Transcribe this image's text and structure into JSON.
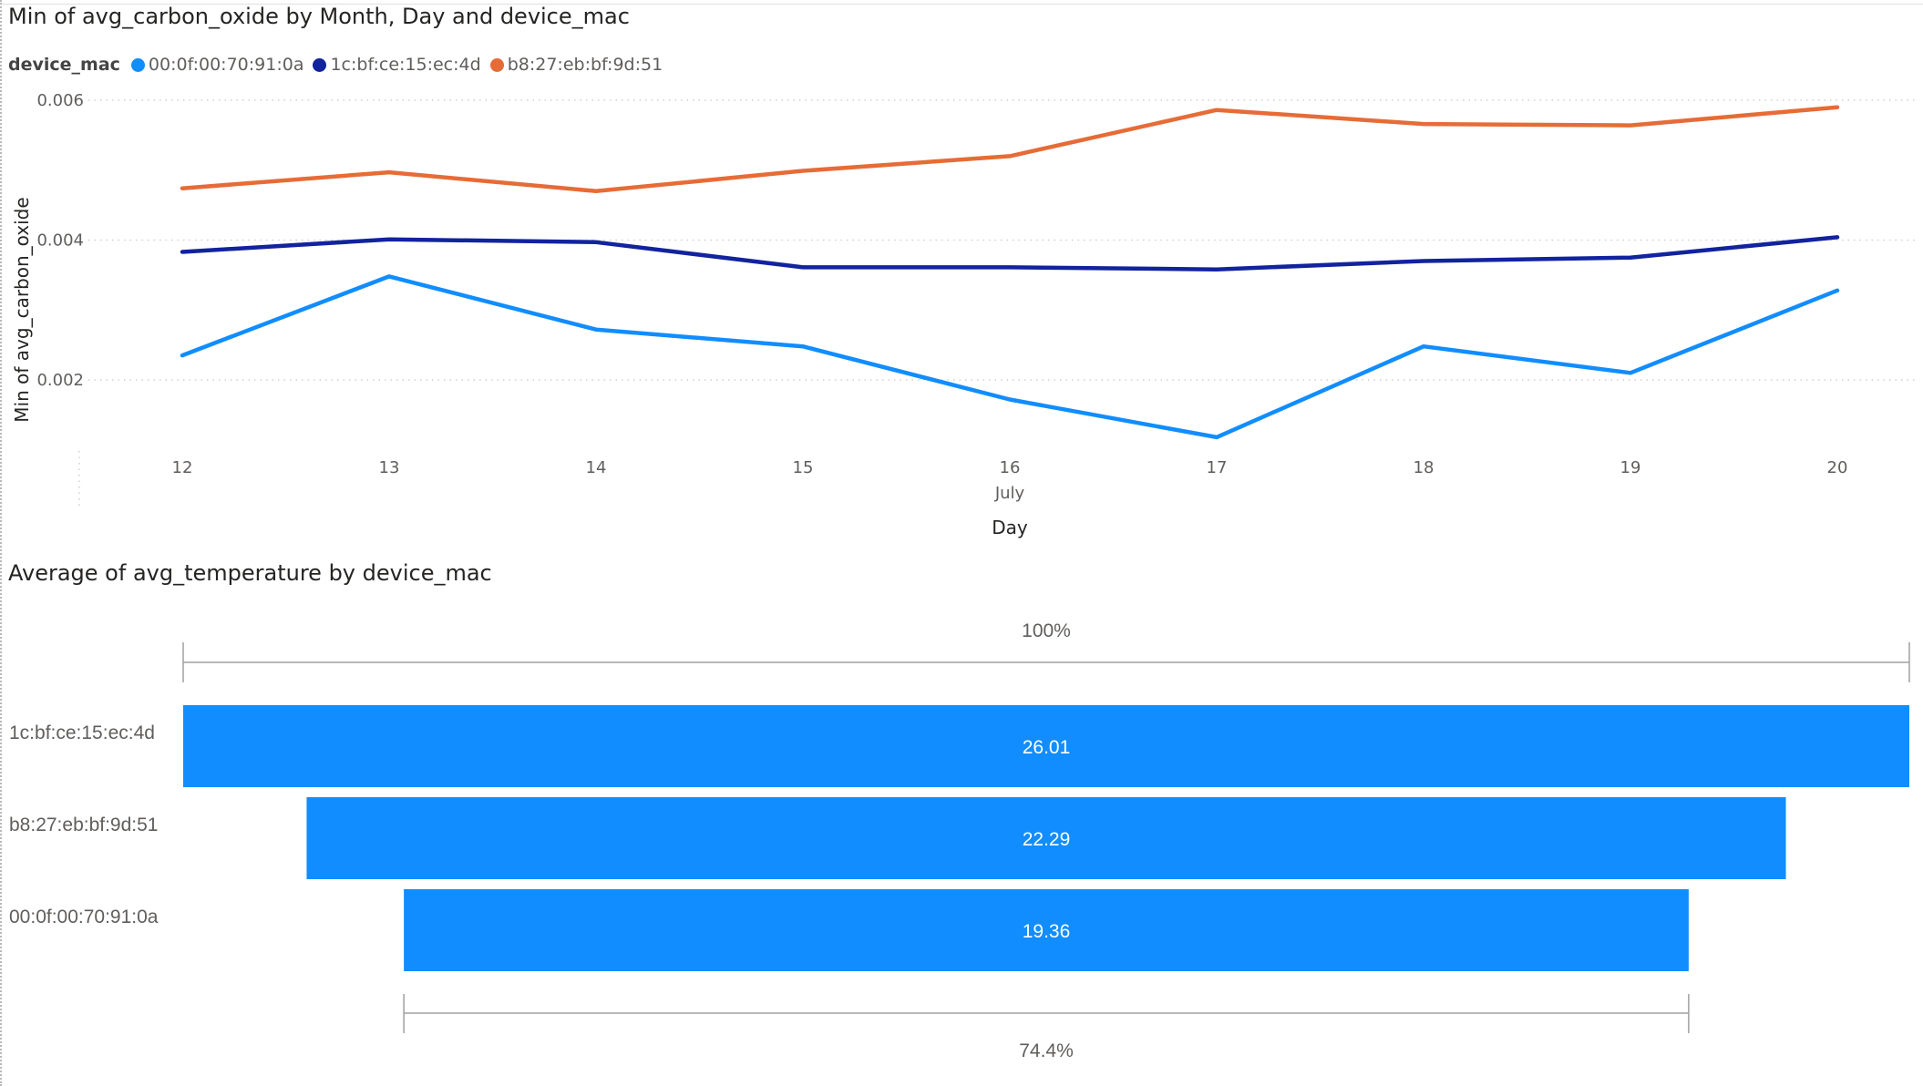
{
  "line_chart": {
    "title": "Min of avg_carbon_oxide by Month, Day and device_mac",
    "legend_title": "device_mac",
    "legend_position": "top-left",
    "xlabel": "Day",
    "x_group_label": "July",
    "ylabel": "Min of avg_carbon_oxide"
  },
  "funnel_chart": {
    "title": "Average of avg_temperature by device_mac"
  },
  "chart_data": [
    {
      "type": "line",
      "title": "Min of avg_carbon_oxide by Month, Day and device_mac",
      "xlabel": "Day",
      "x_group_label": "July",
      "ylabel": "Min of avg_carbon_oxide",
      "x": [
        12,
        13,
        14,
        15,
        16,
        17,
        18,
        19,
        20
      ],
      "xtick_labels": [
        "12",
        "13",
        "14",
        "15",
        "16",
        "17",
        "18",
        "19",
        "20"
      ],
      "ylim": [
        0.0008,
        0.0062
      ],
      "yticks": [
        0.002,
        0.004,
        0.006
      ],
      "ytick_labels": [
        "0.002",
        "0.004",
        "0.006"
      ],
      "grid": true,
      "legend_title": "device_mac",
      "legend_position": "top-left",
      "series": [
        {
          "name": "00:0f:00:70:91:0a",
          "color": "#118dff",
          "values": [
            0.00235,
            0.00348,
            0.00272,
            0.00248,
            0.00172,
            0.00118,
            0.00248,
            0.0021,
            0.00328
          ]
        },
        {
          "name": "1c:bf:ce:15:ec:4d",
          "color": "#12239e",
          "values": [
            0.00383,
            0.00401,
            0.00397,
            0.00361,
            0.00361,
            0.00358,
            0.0037,
            0.00375,
            0.00404
          ]
        },
        {
          "name": "b8:27:eb:bf:9d:51",
          "color": "#e66c37",
          "values": [
            0.00474,
            0.00497,
            0.0047,
            0.00499,
            0.0052,
            0.00586,
            0.00566,
            0.00564,
            0.0059
          ]
        }
      ]
    },
    {
      "type": "bar",
      "subtype": "funnel",
      "title": "Average of avg_temperature by device_mac",
      "categories": [
        "1c:bf:ce:15:ec:4d",
        "b8:27:eb:bf:9d:51",
        "00:0f:00:70:91:0a"
      ],
      "values": [
        26.01,
        22.29,
        19.36
      ],
      "value_labels": [
        "26.01",
        "22.29",
        "19.36"
      ],
      "color": "#118dff",
      "top_percent_label": "100%",
      "bottom_percent_label": "74.4%"
    }
  ]
}
